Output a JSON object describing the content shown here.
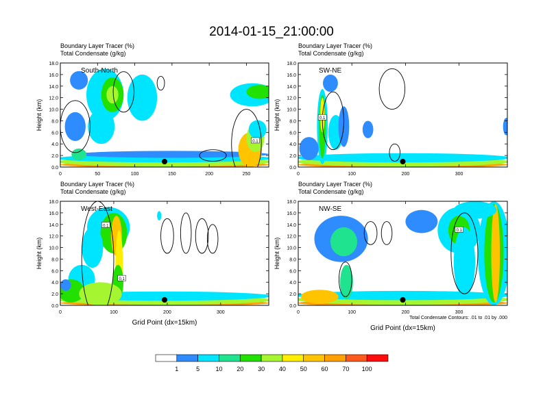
{
  "title": "2014-01-15_21:00:00",
  "chart_data": {
    "type": "heatmap",
    "description_fields": [
      "Boundary Layer Tracer (%)",
      "Total Condensate (g/kg)"
    ],
    "panels": [
      {
        "id": "south-north",
        "header_line1": "Boundary Layer Tracer   (%)",
        "header_line2": "Total Condensate   (g/kg)",
        "label": "South-North",
        "ylabel": "Height (km)",
        "xlabel": "",
        "xlim": [
          0,
          280
        ],
        "ylim": [
          0,
          18
        ],
        "xticks": [
          0,
          50,
          100,
          150,
          200,
          250
        ],
        "yticks": [
          "0.0",
          "2.0",
          "4.0",
          "6.0",
          "8.0",
          "10.0",
          "12.0",
          "14.0",
          "16.0",
          "18.0"
        ],
        "marker_x": 140,
        "contour_labels": [
          {
            "x": 262,
            "y": 4.5,
            "text": "0.1"
          }
        ],
        "blobs": [
          {
            "x": 140,
            "y": 0.4,
            "w": 140,
            "h": 0.5,
            "level": 8
          },
          {
            "x": 140,
            "y": 0.9,
            "w": 145,
            "h": 0.8,
            "level": 5
          },
          {
            "x": 140,
            "y": 1.5,
            "w": 145,
            "h": 0.7,
            "level": 2
          },
          {
            "x": 150,
            "y": 2.2,
            "w": 130,
            "h": 0.6,
            "level": 1
          },
          {
            "x": 255,
            "y": 3.0,
            "w": 16,
            "h": 3.0,
            "level": 7
          },
          {
            "x": 262,
            "y": 5.0,
            "w": 12,
            "h": 2.4,
            "level": 5
          },
          {
            "x": 265,
            "y": 6.5,
            "w": 12,
            "h": 1.6,
            "level": 2
          },
          {
            "x": 25,
            "y": 2.2,
            "w": 10,
            "h": 1.0,
            "level": 3
          },
          {
            "x": 60,
            "y": 12.5,
            "w": 25,
            "h": 4.5,
            "level": 2
          },
          {
            "x": 70,
            "y": 12.5,
            "w": 15,
            "h": 3.0,
            "level": 4
          },
          {
            "x": 70,
            "y": 12.5,
            "w": 8,
            "h": 1.5,
            "level": 5
          },
          {
            "x": 110,
            "y": 12.0,
            "w": 20,
            "h": 4.0,
            "level": 2
          },
          {
            "x": 25,
            "y": 15.0,
            "w": 12,
            "h": 1.6,
            "level": 1
          },
          {
            "x": 55,
            "y": 7.0,
            "w": 18,
            "h": 3.0,
            "level": 2
          },
          {
            "x": 20,
            "y": 7.0,
            "w": 14,
            "h": 2.5,
            "level": 1
          },
          {
            "x": 258,
            "y": 12.5,
            "w": 30,
            "h": 2.0,
            "level": 2
          },
          {
            "x": 268,
            "y": 13.0,
            "w": 18,
            "h": 1.2,
            "level": 4
          }
        ],
        "contours": [
          {
            "x": 20,
            "y": 7.0,
            "w": 20,
            "h": 4.5
          },
          {
            "x": 85,
            "y": 13.0,
            "w": 14,
            "h": 3.5
          },
          {
            "x": 135,
            "y": 14.5,
            "w": 5,
            "h": 1.2
          },
          {
            "x": 250,
            "y": 4.0,
            "w": 20,
            "h": 6.0
          },
          {
            "x": 205,
            "y": 2.0,
            "w": 18,
            "h": 1.0
          }
        ]
      },
      {
        "id": "sw-ne",
        "header_line1": "Boundary Layer Tracer   (%)",
        "header_line2": "Total Condensate   (g/kg)",
        "label": "SW-NE",
        "ylabel": "Height (km)",
        "xlabel": "",
        "xlim": [
          0,
          390
        ],
        "ylim": [
          0,
          18
        ],
        "xticks": [
          0,
          100,
          200,
          300
        ],
        "yticks": [
          "0.0",
          "2.0",
          "4.0",
          "6.0",
          "8.0",
          "10.0",
          "12.0",
          "14.0",
          "16.0",
          "18.0"
        ],
        "marker_x": 195,
        "contour_labels": [
          {
            "x": 45,
            "y": 8.5,
            "text": "0.1"
          }
        ],
        "blobs": [
          {
            "x": 195,
            "y": 0.4,
            "w": 195,
            "h": 0.5,
            "level": 8
          },
          {
            "x": 195,
            "y": 0.9,
            "w": 200,
            "h": 0.8,
            "level": 5
          },
          {
            "x": 195,
            "y": 1.6,
            "w": 200,
            "h": 0.8,
            "level": 2
          },
          {
            "x": 45,
            "y": 7.0,
            "w": 10,
            "h": 6.5,
            "level": 2
          },
          {
            "x": 45,
            "y": 7.0,
            "w": 6,
            "h": 5.5,
            "level": 4
          },
          {
            "x": 45,
            "y": 9.0,
            "w": 4,
            "h": 3.0,
            "level": 6
          },
          {
            "x": 70,
            "y": 6.0,
            "w": 14,
            "h": 3.0,
            "level": 2
          },
          {
            "x": 85,
            "y": 7.0,
            "w": 10,
            "h": 3.5,
            "level": 1
          },
          {
            "x": 20,
            "y": 3.2,
            "w": 18,
            "h": 2.0,
            "level": 1
          },
          {
            "x": 60,
            "y": 14.5,
            "w": 14,
            "h": 1.5,
            "level": 1
          },
          {
            "x": 388,
            "y": 7.0,
            "w": 6,
            "h": 1.5,
            "level": 1
          },
          {
            "x": 130,
            "y": 6.5,
            "w": 10,
            "h": 1.5,
            "level": 1
          }
        ],
        "contours": [
          {
            "x": 175,
            "y": 13.5,
            "w": 24,
            "h": 3.5
          },
          {
            "x": 65,
            "y": 8.0,
            "w": 20,
            "h": 5.0
          },
          {
            "x": 180,
            "y": 2.5,
            "w": 10,
            "h": 1.5
          }
        ]
      },
      {
        "id": "west-east",
        "header_line1": "Boundary Layer Tracer   (%)",
        "header_line2": "Total Condensate   (g/kg)",
        "label": "West-East",
        "ylabel": "Height (km)",
        "xlabel": "Grid Point (dx=15km)",
        "xlim": [
          0,
          390
        ],
        "ylim": [
          0,
          18
        ],
        "xticks": [
          0,
          100,
          200,
          300
        ],
        "yticks": [
          "0.0",
          "2.0",
          "4.0",
          "6.0",
          "8.0",
          "10.0",
          "12.0",
          "14.0",
          "16.0",
          "18.0"
        ],
        "marker_x": 195,
        "contour_labels": [
          {
            "x": 85,
            "y": 13.8,
            "text": "0.1"
          },
          {
            "x": 115,
            "y": 4.6,
            "text": "0.1"
          }
        ],
        "blobs": [
          {
            "x": 195,
            "y": 0.4,
            "w": 195,
            "h": 0.5,
            "level": 8
          },
          {
            "x": 195,
            "y": 0.9,
            "w": 200,
            "h": 0.8,
            "level": 5
          },
          {
            "x": 195,
            "y": 1.6,
            "w": 200,
            "h": 0.8,
            "level": 2
          },
          {
            "x": 90,
            "y": 13.5,
            "w": 40,
            "h": 3.5,
            "level": 2
          },
          {
            "x": 100,
            "y": 12.5,
            "w": 25,
            "h": 3.5,
            "level": 4
          },
          {
            "x": 105,
            "y": 12.0,
            "w": 10,
            "h": 3.5,
            "level": 7
          },
          {
            "x": 110,
            "y": 7.0,
            "w": 7,
            "h": 6.0,
            "level": 6
          },
          {
            "x": 108,
            "y": 4.0,
            "w": 10,
            "h": 3.0,
            "level": 4
          },
          {
            "x": 60,
            "y": 10.0,
            "w": 20,
            "h": 3.5,
            "level": 2
          },
          {
            "x": 40,
            "y": 4.5,
            "w": 25,
            "h": 2.5,
            "level": 2
          },
          {
            "x": 20,
            "y": 2.5,
            "w": 25,
            "h": 2.0,
            "level": 4
          },
          {
            "x": 75,
            "y": 2.0,
            "w": 40,
            "h": 2.0,
            "level": 5
          },
          {
            "x": 10,
            "y": 3.5,
            "w": 10,
            "h": 1.0,
            "level": 1
          },
          {
            "x": 185,
            "y": 15.5,
            "w": 4,
            "h": 0.8,
            "level": 2
          }
        ],
        "contours": [
          {
            "x": 200,
            "y": 12.0,
            "w": 12,
            "h": 3.0
          },
          {
            "x": 235,
            "y": 12.5,
            "w": 10,
            "h": 3.5
          },
          {
            "x": 265,
            "y": 12.0,
            "w": 12,
            "h": 3.0
          },
          {
            "x": 285,
            "y": 11.5,
            "w": 10,
            "h": 2.5
          },
          {
            "x": 70,
            "y": 8.0,
            "w": 30,
            "h": 10.0
          }
        ]
      },
      {
        "id": "nw-se",
        "header_line1": "Boundary Layer Tracer   (%)",
        "header_line2": "Total Condensate   (g/kg)",
        "label": "NW-SE",
        "ylabel": "Height (km)",
        "xlabel": "Grid Point (dx=15km)",
        "xlim": [
          0,
          390
        ],
        "ylim": [
          0,
          18
        ],
        "xticks": [
          0,
          100,
          200,
          300
        ],
        "yticks": [
          "0.0",
          "2.0",
          "4.0",
          "6.0",
          "8.0",
          "10.0",
          "12.0",
          "14.0",
          "16.0",
          "18.0"
        ],
        "marker_x": 195,
        "contour_labels": [
          {
            "x": 300,
            "y": 13.0,
            "text": "0.1"
          }
        ],
        "note": "Total Condensate Contours: .01 to .01 by .000",
        "blobs": [
          {
            "x": 195,
            "y": 0.4,
            "w": 195,
            "h": 0.6,
            "level": 8
          },
          {
            "x": 195,
            "y": 1.0,
            "w": 200,
            "h": 0.9,
            "level": 5
          },
          {
            "x": 195,
            "y": 1.7,
            "w": 200,
            "h": 0.8,
            "level": 2
          },
          {
            "x": 365,
            "y": 9.0,
            "w": 30,
            "h": 9.0,
            "level": 2
          },
          {
            "x": 365,
            "y": 9.0,
            "w": 18,
            "h": 8.5,
            "level": 4
          },
          {
            "x": 368,
            "y": 9.0,
            "w": 8,
            "h": 8.5,
            "level": 7
          },
          {
            "x": 300,
            "y": 13.0,
            "w": 40,
            "h": 4.0,
            "level": 2
          },
          {
            "x": 300,
            "y": 13.0,
            "w": 20,
            "h": 2.5,
            "level": 4
          },
          {
            "x": 310,
            "y": 7.5,
            "w": 20,
            "h": 6.0,
            "level": 2
          },
          {
            "x": 230,
            "y": 14.5,
            "w": 30,
            "h": 2.0,
            "level": 1
          },
          {
            "x": 80,
            "y": 11.5,
            "w": 50,
            "h": 4.0,
            "level": 1
          },
          {
            "x": 85,
            "y": 11.0,
            "w": 25,
            "h": 2.5,
            "level": 3
          },
          {
            "x": 90,
            "y": 4.0,
            "w": 12,
            "h": 3.0,
            "level": 3
          },
          {
            "x": 40,
            "y": 1.5,
            "w": 35,
            "h": 1.2,
            "level": 7
          },
          {
            "x": 330,
            "y": 16.5,
            "w": 40,
            "h": 1.5,
            "level": 2
          }
        ],
        "contours": [
          {
            "x": 135,
            "y": 12.5,
            "w": 12,
            "h": 2.0
          },
          {
            "x": 165,
            "y": 12.5,
            "w": 10,
            "h": 2.0
          },
          {
            "x": 310,
            "y": 9.0,
            "w": 25,
            "h": 7.0
          },
          {
            "x": 88,
            "y": 4.5,
            "w": 12,
            "h": 3.0
          }
        ]
      }
    ],
    "colorbar": {
      "colors": [
        "#ffffff",
        "#2e8cff",
        "#00e5ff",
        "#1fe38e",
        "#22e000",
        "#a6f531",
        "#ffee00",
        "#ffc400",
        "#ff9f00",
        "#ff5a1c",
        "#ff0c0c"
      ],
      "labels": [
        "1",
        "5",
        "10",
        "20",
        "30",
        "40",
        "50",
        "60",
        "70",
        "100"
      ]
    }
  }
}
